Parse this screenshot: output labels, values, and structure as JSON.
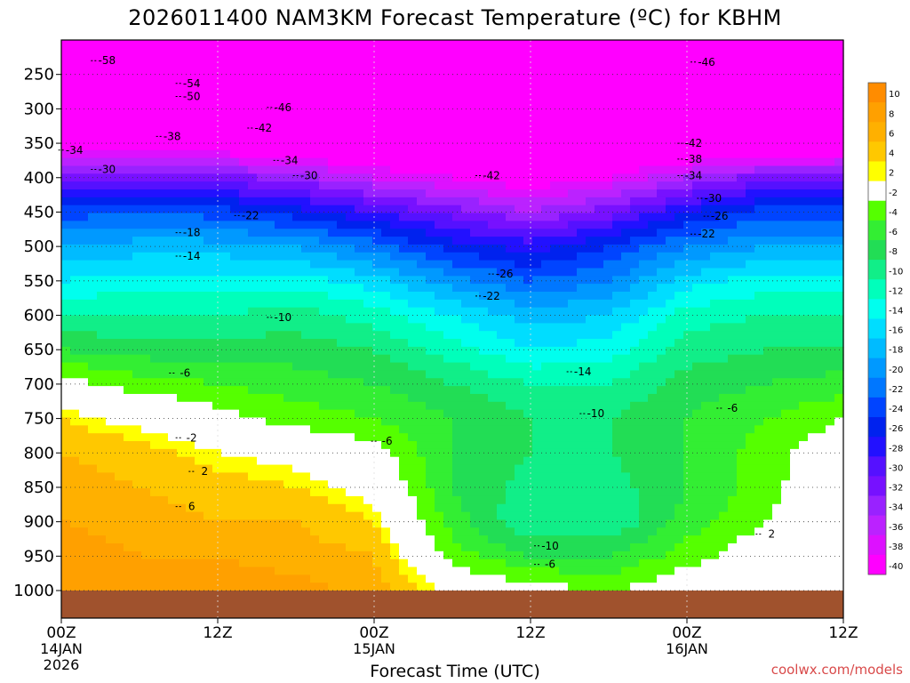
{
  "title": "2026011400 NAM3KM Forecast Temperature (ºC) for KBHM",
  "credit": "coolwx.com/models",
  "chart_data": {
    "type": "heatmap",
    "title": "2026011400 NAM3KM Forecast Temperature (ºC) for KBHM",
    "xlabel": "Forecast Time (UTC)",
    "ylabel": "",
    "x_range_hours": [
      0,
      60
    ],
    "x_ticks": [
      {
        "hour": 0,
        "label": "00Z",
        "sub": [
          "14JAN",
          "2026"
        ]
      },
      {
        "hour": 12,
        "label": "12Z",
        "sub": []
      },
      {
        "hour": 24,
        "label": "00Z",
        "sub": [
          "15JAN"
        ]
      },
      {
        "hour": 36,
        "label": "12Z",
        "sub": []
      },
      {
        "hour": 48,
        "label": "00Z",
        "sub": [
          "16JAN"
        ]
      },
      {
        "hour": 60,
        "label": "12Z",
        "sub": []
      }
    ],
    "y_range_hpa": [
      200,
      1040
    ],
    "y_ticks": [
      250,
      300,
      350,
      400,
      450,
      500,
      550,
      600,
      650,
      700,
      750,
      800,
      850,
      900,
      950,
      1000
    ],
    "grid": true,
    "times": [
      0,
      6,
      12,
      18,
      24,
      30,
      36,
      42,
      48,
      54,
      60
    ],
    "levels": [
      200,
      250,
      300,
      350,
      400,
      450,
      500,
      550,
      600,
      650,
      700,
      750,
      800,
      850,
      900,
      950,
      1000
    ],
    "temperature_c": [
      [
        -60,
        -60,
        -59,
        -58,
        -56,
        -54,
        -52,
        -52,
        -54,
        -56,
        -57
      ],
      [
        -57,
        -56,
        -55,
        -53,
        -51,
        -49,
        -48,
        -48,
        -49,
        -50,
        -51
      ],
      [
        -51,
        -50,
        -49,
        -47,
        -46,
        -46,
        -46,
        -46,
        -46,
        -46,
        -47
      ],
      [
        -41,
        -40,
        -41,
        -42,
        -43,
        -43,
        -44,
        -44,
        -43,
        -43,
        -43
      ],
      [
        -31,
        -30,
        -31,
        -33,
        -36,
        -38,
        -40,
        -38,
        -34,
        -31,
        -30
      ],
      [
        -23,
        -22,
        -23,
        -25,
        -28,
        -31,
        -34,
        -31,
        -26,
        -23,
        -23
      ],
      [
        -18,
        -17,
        -17,
        -18,
        -21,
        -25,
        -27,
        -24,
        -20,
        -18,
        -18
      ],
      [
        -14,
        -13,
        -13,
        -13,
        -15,
        -19,
        -22,
        -20,
        -15,
        -13,
        -13
      ],
      [
        -10,
        -10,
        -10,
        -9,
        -11,
        -14,
        -17,
        -16,
        -11,
        -10,
        -10
      ],
      [
        -6,
        -7,
        -7,
        -7,
        -8,
        -11,
        -14,
        -13,
        -9,
        -8,
        -8
      ],
      [
        -1,
        -3,
        -4,
        -5,
        -6,
        -8,
        -10,
        -10,
        -7,
        -6,
        -5
      ],
      [
        3,
        1,
        -1,
        -3,
        -4,
        -6,
        -8,
        -8,
        -6,
        -4,
        -2
      ],
      [
        5,
        4,
        2,
        1,
        -1,
        -6,
        -8,
        -8,
        -6,
        -3,
        0
      ],
      [
        6,
        5,
        4,
        3,
        1,
        -6,
        -9,
        -9,
        -6,
        -3,
        1
      ],
      [
        7,
        6,
        5,
        5,
        3,
        -5,
        -10,
        -10,
        -5,
        -2,
        1
      ],
      [
        8,
        7,
        7,
        6,
        5,
        -3,
        -6,
        -6,
        -3,
        0,
        2
      ],
      [
        9,
        8,
        8,
        8,
        6,
        1,
        -1,
        -2,
        0,
        1,
        2
      ]
    ],
    "contour_labels": [
      {
        "t": 3.5,
        "p": 230,
        "v": -58
      },
      {
        "t": 10,
        "p": 263,
        "v": -54
      },
      {
        "t": 10,
        "p": 282,
        "v": -50
      },
      {
        "t": 17,
        "p": 298,
        "v": -46
      },
      {
        "t": 15.5,
        "p": 328,
        "v": -42
      },
      {
        "t": 8.5,
        "p": 340,
        "v": -38
      },
      {
        "t": 1,
        "p": 360,
        "v": -34
      },
      {
        "t": 17.5,
        "p": 375,
        "v": -34
      },
      {
        "t": 3.5,
        "p": 388,
        "v": -30
      },
      {
        "t": 19,
        "p": 397,
        "v": -30
      },
      {
        "t": 14.5,
        "p": 455,
        "v": -22
      },
      {
        "t": 10,
        "p": 480,
        "v": -18
      },
      {
        "t": 10,
        "p": 514,
        "v": -14
      },
      {
        "t": 17,
        "p": 603,
        "v": -10
      },
      {
        "t": 9.5,
        "p": 684,
        "v": -6
      },
      {
        "t": 10,
        "p": 778,
        "v": -2
      },
      {
        "t": 11,
        "p": 827,
        "v": 2
      },
      {
        "t": 10,
        "p": 878,
        "v": 6
      },
      {
        "t": 25,
        "p": 783,
        "v": -6
      },
      {
        "t": 33,
        "p": 397,
        "v": -42
      },
      {
        "t": 34,
        "p": 540,
        "v": -26
      },
      {
        "t": 33,
        "p": 572,
        "v": -22
      },
      {
        "t": 40,
        "p": 682,
        "v": -14
      },
      {
        "t": 41,
        "p": 743,
        "v": -10
      },
      {
        "t": 37.5,
        "p": 935,
        "v": -10
      },
      {
        "t": 37.5,
        "p": 962,
        "v": -6
      },
      {
        "t": 49.5,
        "p": 232,
        "v": -46
      },
      {
        "t": 48.5,
        "p": 350,
        "v": -42
      },
      {
        "t": 48.5,
        "p": 373,
        "v": -38
      },
      {
        "t": 48.5,
        "p": 397,
        "v": -34
      },
      {
        "t": 50,
        "p": 430,
        "v": -30
      },
      {
        "t": 50.5,
        "p": 456,
        "v": -26
      },
      {
        "t": 49.5,
        "p": 482,
        "v": -22
      },
      {
        "t": 51.5,
        "p": 735,
        "v": -6
      },
      {
        "t": 54.5,
        "p": 918,
        "v": 2
      }
    ],
    "colorbar": {
      "labels": [
        10,
        8,
        6,
        4,
        2,
        -2,
        -4,
        -6,
        -8,
        -10,
        -12,
        -14,
        -16,
        -18,
        -20,
        -22,
        -24,
        -26,
        -28,
        -30,
        -32,
        -34,
        -36,
        -38,
        -40
      ],
      "colors": [
        "#ff8c00",
        "#ffa000",
        "#ffb000",
        "#ffc800",
        "#ffff00",
        "#ffffff",
        "#55ff00",
        "#33ee33",
        "#22dd55",
        "#11ee88",
        "#00ffbb",
        "#00ffee",
        "#00ddff",
        "#00bbff",
        "#0099ff",
        "#0077ff",
        "#0044ff",
        "#0022ee",
        "#2211ff",
        "#5511ff",
        "#7711ff",
        "#9922ff",
        "#bb22ff",
        "#dd11ff",
        "#ff00ff"
      ]
    },
    "ground_color": "#a0522d"
  }
}
